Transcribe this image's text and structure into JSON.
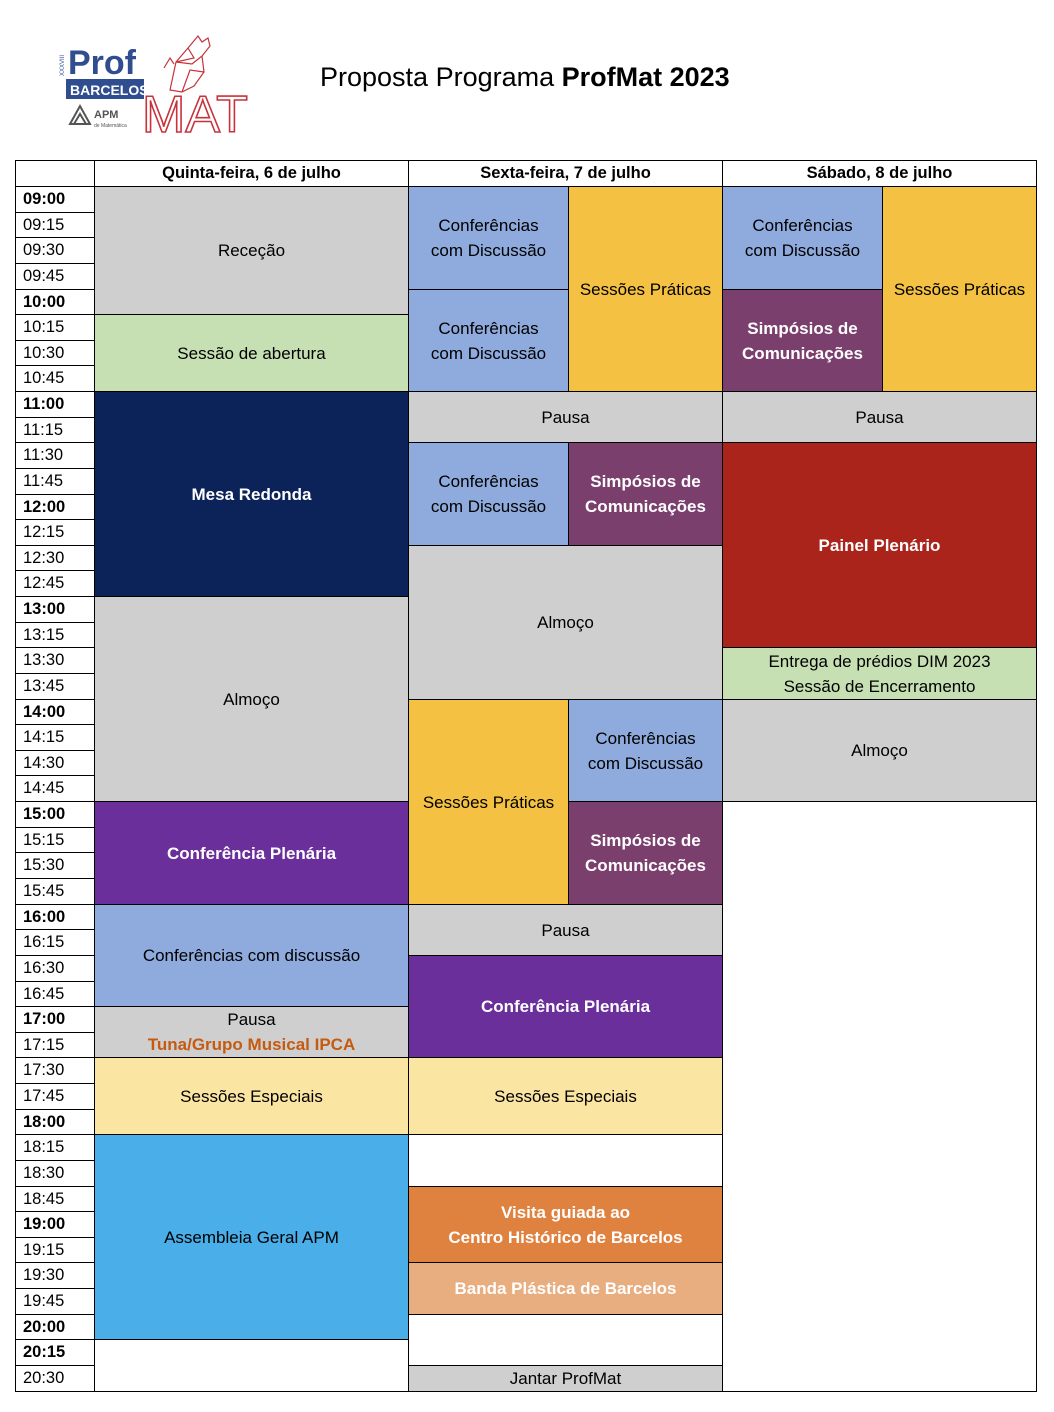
{
  "logo": {
    "roman": "XXXVIII",
    "prof": "Prof",
    "barcelos": "BARCELOS",
    "mat": "MAT",
    "apm": "APM",
    "apm_sub": "de Matemática",
    "colors": {
      "blue": "#2f4d8f",
      "red": "#c8323a"
    }
  },
  "title": {
    "prefix": "Proposta Programa ",
    "bold": "ProfMat 2023"
  },
  "header": {
    "days": [
      "Quinta-feira, 6 de julho",
      "Sexta-feira, 7 de julho",
      "Sábado, 8 de julho"
    ]
  },
  "times": [
    {
      "t": "09:00",
      "bold": true
    },
    {
      "t": "09:15",
      "bold": false
    },
    {
      "t": "09:30",
      "bold": false
    },
    {
      "t": "09:45",
      "bold": false
    },
    {
      "t": "10:00",
      "bold": true
    },
    {
      "t": "10:15",
      "bold": false
    },
    {
      "t": "10:30",
      "bold": false
    },
    {
      "t": "10:45",
      "bold": false
    },
    {
      "t": "11:00",
      "bold": true
    },
    {
      "t": "11:15",
      "bold": false
    },
    {
      "t": "11:30",
      "bold": false
    },
    {
      "t": "11:45",
      "bold": false
    },
    {
      "t": "12:00",
      "bold": true
    },
    {
      "t": "12:15",
      "bold": false
    },
    {
      "t": "12:30",
      "bold": false
    },
    {
      "t": "12:45",
      "bold": false
    },
    {
      "t": "13:00",
      "bold": true
    },
    {
      "t": "13:15",
      "bold": false
    },
    {
      "t": "13:30",
      "bold": false
    },
    {
      "t": "13:45",
      "bold": false
    },
    {
      "t": "14:00",
      "bold": true
    },
    {
      "t": "14:15",
      "bold": false
    },
    {
      "t": "14:30",
      "bold": false
    },
    {
      "t": "14:45",
      "bold": false
    },
    {
      "t": "15:00",
      "bold": true
    },
    {
      "t": "15:15",
      "bold": false
    },
    {
      "t": "15:30",
      "bold": false
    },
    {
      "t": "15:45",
      "bold": false
    },
    {
      "t": "16:00",
      "bold": true
    },
    {
      "t": "16:15",
      "bold": false
    },
    {
      "t": "16:30",
      "bold": false
    },
    {
      "t": "16:45",
      "bold": false
    },
    {
      "t": "17:00",
      "bold": true
    },
    {
      "t": "17:15",
      "bold": false
    },
    {
      "t": "17:30",
      "bold": false
    },
    {
      "t": "17:45",
      "bold": false
    },
    {
      "t": "18:00",
      "bold": true
    },
    {
      "t": "18:15",
      "bold": false
    },
    {
      "t": "18:30",
      "bold": false
    },
    {
      "t": "18:45",
      "bold": false
    },
    {
      "t": "19:00",
      "bold": true
    },
    {
      "t": "19:15",
      "bold": false
    },
    {
      "t": "19:30",
      "bold": false
    },
    {
      "t": "19:45",
      "bold": false
    },
    {
      "t": "20:00",
      "bold": true
    },
    {
      "t": "20:15",
      "bold": true
    },
    {
      "t": "20:30",
      "bold": false
    }
  ],
  "colors": {
    "gray": "#d0cfd0",
    "green": "#c6e0b4",
    "navy": "#0b2358",
    "periwinkle": "#8faadc",
    "gold": "#f4c142",
    "plum": "#7b3f6e",
    "purple": "#6a2f9a",
    "red": "#ab241b",
    "lightyellow": "#fbe5a3",
    "skyblue": "#4aaee8",
    "orange": "#e0823f",
    "peach": "#e9ae80",
    "white": "#ffffff"
  },
  "events": [
    {
      "day": 0,
      "lane": "full",
      "start": 0,
      "end": 5,
      "lines": [
        "Receção"
      ],
      "color": "gray",
      "light": false
    },
    {
      "day": 0,
      "lane": "full",
      "start": 5,
      "end": 8,
      "lines": [
        "Sessão de abertura"
      ],
      "color": "green",
      "light": false
    },
    {
      "day": 0,
      "lane": "full",
      "start": 8,
      "end": 16,
      "lines": [
        "Mesa Redonda"
      ],
      "color": "navy",
      "light": true,
      "bold": true
    },
    {
      "day": 0,
      "lane": "full",
      "start": 16,
      "end": 24,
      "lines": [
        "Almoço"
      ],
      "color": "gray",
      "light": false
    },
    {
      "day": 0,
      "lane": "full",
      "start": 24,
      "end": 28,
      "lines": [
        "Conferência Plenária"
      ],
      "color": "purple",
      "light": true,
      "bold": true
    },
    {
      "day": 0,
      "lane": "full",
      "start": 28,
      "end": 32,
      "lines": [
        "Conferências com discussão"
      ],
      "color": "periwinkle",
      "light": false
    },
    {
      "day": 0,
      "lane": "full",
      "start": 32,
      "end": 34,
      "lines": [
        "Pausa",
        "Tuna/Grupo Musical IPCA"
      ],
      "color": "gray",
      "light": false,
      "tuna": true
    },
    {
      "day": 0,
      "lane": "full",
      "start": 34,
      "end": 37,
      "lines": [
        "Sessões Especiais"
      ],
      "color": "lightyellow",
      "light": false
    },
    {
      "day": 0,
      "lane": "full",
      "start": 37,
      "end": 45,
      "lines": [
        "Assembleia Geral APM"
      ],
      "color": "skyblue",
      "light": false
    },
    {
      "day": 0,
      "lane": "full",
      "start": 45,
      "end": 47,
      "lines": [],
      "color": "white",
      "light": false
    },
    {
      "day": 1,
      "lane": "left",
      "start": 0,
      "end": 4,
      "lines": [
        "Conferências",
        "com Discussão"
      ],
      "color": "periwinkle",
      "light": false
    },
    {
      "day": 1,
      "lane": "left",
      "start": 4,
      "end": 8,
      "lines": [
        "Conferências",
        "com Discussão"
      ],
      "color": "periwinkle",
      "light": false
    },
    {
      "day": 1,
      "lane": "right",
      "start": 0,
      "end": 8,
      "lines": [
        "Sessões Práticas"
      ],
      "color": "gold",
      "light": false
    },
    {
      "day": 1,
      "lane": "full",
      "start": 8,
      "end": 10,
      "lines": [
        "Pausa"
      ],
      "color": "gray",
      "light": false
    },
    {
      "day": 1,
      "lane": "left",
      "start": 10,
      "end": 14,
      "lines": [
        "Conferências",
        "com Discussão"
      ],
      "color": "periwinkle",
      "light": false
    },
    {
      "day": 1,
      "lane": "right",
      "start": 10,
      "end": 14,
      "lines": [
        "Simpósios de",
        "Comunicações"
      ],
      "color": "plum",
      "light": true,
      "bold": true
    },
    {
      "day": 1,
      "lane": "full",
      "start": 14,
      "end": 20,
      "lines": [
        "Almoço"
      ],
      "color": "gray",
      "light": false
    },
    {
      "day": 1,
      "lane": "left",
      "start": 20,
      "end": 28,
      "lines": [
        "Sessões Práticas"
      ],
      "color": "gold",
      "light": false
    },
    {
      "day": 1,
      "lane": "right",
      "start": 20,
      "end": 24,
      "lines": [
        "Conferências",
        "com Discussão"
      ],
      "color": "periwinkle",
      "light": false
    },
    {
      "day": 1,
      "lane": "right",
      "start": 24,
      "end": 28,
      "lines": [
        "Simpósios de",
        "Comunicações"
      ],
      "color": "plum",
      "light": true,
      "bold": true
    },
    {
      "day": 1,
      "lane": "full",
      "start": 28,
      "end": 30,
      "lines": [
        "Pausa"
      ],
      "color": "gray",
      "light": false
    },
    {
      "day": 1,
      "lane": "full",
      "start": 30,
      "end": 34,
      "lines": [
        "Conferência Plenária"
      ],
      "color": "purple",
      "light": true,
      "bold": true
    },
    {
      "day": 1,
      "lane": "full",
      "start": 34,
      "end": 37,
      "lines": [
        "Sessões Especiais"
      ],
      "color": "lightyellow",
      "light": false
    },
    {
      "day": 1,
      "lane": "full",
      "start": 37,
      "end": 39,
      "lines": [],
      "color": "white",
      "light": false
    },
    {
      "day": 1,
      "lane": "full",
      "start": 39,
      "end": 42,
      "lines": [
        "Visita guiada ao",
        "Centro Histórico de Barcelos"
      ],
      "color": "orange",
      "light": true,
      "bold": true
    },
    {
      "day": 1,
      "lane": "full",
      "start": 42,
      "end": 44,
      "lines": [
        "Banda Plástica de Barcelos"
      ],
      "color": "peach",
      "light": true,
      "bold": true
    },
    {
      "day": 1,
      "lane": "full",
      "start": 44,
      "end": 46,
      "lines": [],
      "color": "white",
      "light": false
    },
    {
      "day": 1,
      "lane": "full",
      "start": 46,
      "end": 47,
      "lines": [
        "Jantar ProfMat"
      ],
      "color": "gray",
      "light": false
    },
    {
      "day": 2,
      "lane": "left",
      "start": 0,
      "end": 4,
      "lines": [
        "Conferências",
        "com Discussão"
      ],
      "color": "periwinkle",
      "light": false
    },
    {
      "day": 2,
      "lane": "left",
      "start": 4,
      "end": 8,
      "lines": [
        "Simpósios de",
        "Comunicações"
      ],
      "color": "plum",
      "light": true,
      "bold": true
    },
    {
      "day": 2,
      "lane": "right",
      "start": 0,
      "end": 8,
      "lines": [
        "Sessões Práticas"
      ],
      "color": "gold",
      "light": false
    },
    {
      "day": 2,
      "lane": "full",
      "start": 8,
      "end": 10,
      "lines": [
        "Pausa"
      ],
      "color": "gray",
      "light": false
    },
    {
      "day": 2,
      "lane": "full",
      "start": 10,
      "end": 18,
      "lines": [
        "Painel Plenário"
      ],
      "color": "red",
      "light": true,
      "bold": true
    },
    {
      "day": 2,
      "lane": "full",
      "start": 18,
      "end": 20,
      "lines": [
        "Entrega de prédios DIM 2023",
        "Sessão de Encerramento"
      ],
      "color": "green",
      "light": false
    },
    {
      "day": 2,
      "lane": "full",
      "start": 20,
      "end": 24,
      "lines": [
        "Almoço"
      ],
      "color": "gray",
      "light": false
    },
    {
      "day": 2,
      "lane": "full",
      "start": 24,
      "end": 47,
      "lines": [],
      "color": "white",
      "light": false
    }
  ]
}
